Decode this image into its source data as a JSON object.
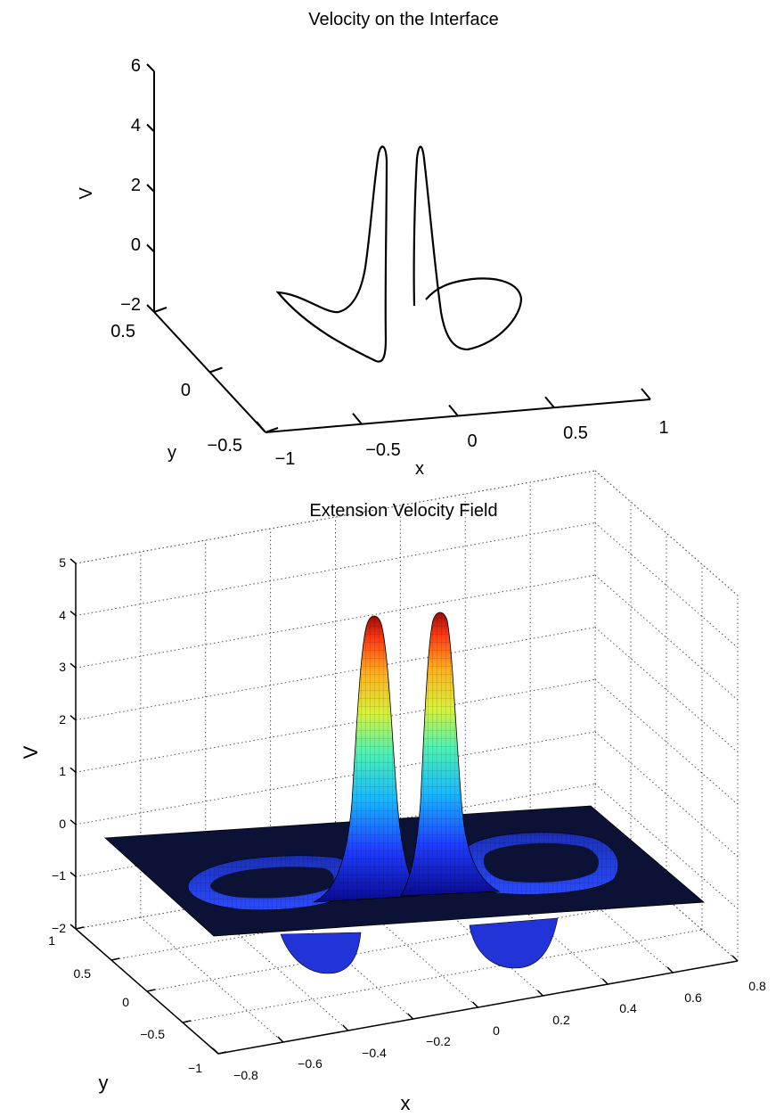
{
  "chart_data": [
    {
      "type": "line",
      "title": "Velocity on the Interface",
      "xlabel": "x",
      "ylabel": "y",
      "zlabel": "V",
      "x_ticks": [
        "−1",
        "−0.5",
        "0",
        "0.5",
        "1"
      ],
      "y_ticks": [
        "−0.5",
        "0",
        "0.5"
      ],
      "z_ticks": [
        "−2",
        "0",
        "2",
        "4",
        "6"
      ],
      "xlim": [
        -1,
        1
      ],
      "ylim": [
        -0.5,
        0.5
      ],
      "zlim": [
        -2,
        6
      ],
      "grid": false,
      "series": [
        {
          "curve": "closed interface loop",
          "peaks": [
            {
              "x": -0.12,
              "y": 0.0,
              "V": 4.2
            },
            {
              "x": 0.12,
              "y": 0.0,
              "V": 4.2
            }
          ],
          "minimum_V": -1.6
        }
      ]
    },
    {
      "type": "surface",
      "title": "Extension Velocity Field",
      "xlabel": "x",
      "ylabel": "y",
      "zlabel": "V",
      "x_ticks": [
        "−0.8",
        "−0.6",
        "−0.4",
        "−0.2",
        "0",
        "0.2",
        "0.4",
        "0.6",
        "0.8"
      ],
      "y_ticks": [
        "−1",
        "−0.5",
        "0",
        "0.5",
        "1"
      ],
      "z_ticks": [
        "−2",
        "−1",
        "0",
        "1",
        "2",
        "3",
        "4",
        "5"
      ],
      "xlim": [
        -0.8,
        0.8
      ],
      "ylim": [
        -1,
        1
      ],
      "zlim": [
        -2,
        5
      ],
      "grid": true,
      "colormap": "jet",
      "peaks": [
        {
          "x": -0.12,
          "y": 0.0,
          "V": 4.3
        },
        {
          "x": 0.12,
          "y": 0.0,
          "V": 4.3
        }
      ],
      "background_V": 0,
      "minimum_V": -1.7
    }
  ]
}
